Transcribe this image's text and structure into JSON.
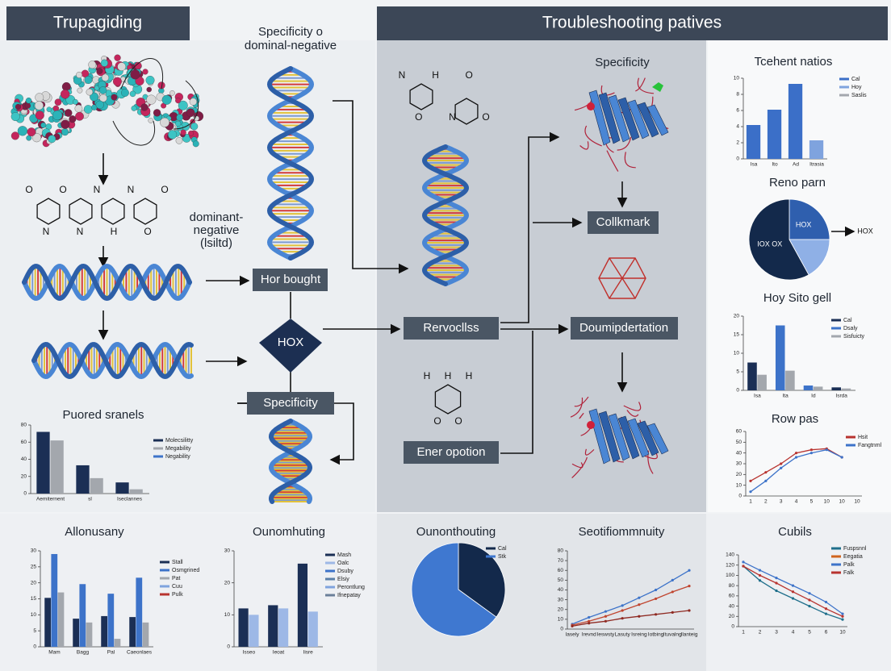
{
  "header": {
    "left_title": "Trupagiding",
    "right_title": "Troubleshooting patives"
  },
  "labels": {
    "specificity_top": [
      "Specificity o",
      "dominal-negative"
    ],
    "dominant_negative": [
      "dominant-",
      "negative",
      "(lsiltd)"
    ],
    "specificity_mid": "Specificity"
  },
  "boxes": {
    "hor_bought": "Hor bought",
    "hox": "HOX",
    "specificity": "Specificity",
    "collkmark": "Collkmark",
    "rervocllss": "Rervocllss",
    "doumipdertation": "Doumipdertation",
    "ener_opotion": "Ener opotion"
  },
  "molecules": [
    [
      "O",
      "N",
      "O",
      "N",
      "N",
      "H",
      "N",
      "O",
      "O"
    ],
    [
      "N",
      "O",
      "H",
      "N",
      "O",
      "O"
    ],
    [
      "H",
      "O",
      "H",
      "O",
      "H"
    ]
  ],
  "chart_data": [
    {
      "type": "bar",
      "title": "Tcehent natios",
      "categories": [
        "Isa",
        "Ito",
        "Ad",
        "Itrasia"
      ],
      "ylim": [
        0,
        10
      ],
      "yticks": [
        0,
        2,
        4,
        6,
        8,
        10
      ],
      "series": [
        {
          "name": "Cal",
          "color": "#3b6fc8",
          "values": [
            4.2,
            6.1,
            9.3,
            null
          ]
        },
        {
          "name": "Hoy",
          "color": "#7fa3de",
          "values": [
            null,
            null,
            null,
            2.3
          ]
        },
        {
          "name": "Saslis",
          "color": "#a3a7ad",
          "values": [
            null,
            null,
            null,
            null
          ]
        }
      ]
    },
    {
      "type": "pie",
      "title": "Reno parn",
      "categories": [
        "HOX",
        null,
        "IOX OX"
      ],
      "values": [
        25,
        17,
        58
      ],
      "colors": [
        "#2f5fae",
        "#8fb0e6",
        "#13294b"
      ],
      "annotation": "HOX"
    },
    {
      "type": "bar",
      "title": "Hoy Sito gell",
      "categories": [
        "Isa",
        "Ita",
        "Id",
        "Isrda"
      ],
      "ylim": [
        0,
        20
      ],
      "yticks": [
        0,
        5,
        10,
        15,
        20
      ],
      "series": [
        {
          "name": "Cal",
          "color": "#1b2f55",
          "values": [
            7.5,
            null,
            null,
            0.8
          ]
        },
        {
          "name": "Dsaly",
          "color": "#3d73c9",
          "values": [
            null,
            17.5,
            1.3,
            null
          ]
        },
        {
          "name": "Sisfuicty",
          "color": "#a3a7ad",
          "values": [
            4.2,
            5.3,
            1,
            0.5
          ]
        }
      ]
    },
    {
      "type": "line",
      "title": "Row pas",
      "categories": [
        "1",
        "2",
        "3",
        "4",
        "5",
        "10",
        "10",
        "10"
      ],
      "ylim": [
        0,
        60
      ],
      "yticks": [
        0,
        10,
        20,
        30,
        40,
        50,
        60
      ],
      "series": [
        {
          "name": "Hsit",
          "color": "#b8332f",
          "values": [
            14,
            22,
            30,
            40,
            43,
            44,
            36,
            null
          ]
        },
        {
          "name": "Fangtnml",
          "color": "#3d73c9",
          "values": [
            4,
            14,
            26,
            36,
            40,
            43,
            36,
            null
          ]
        }
      ]
    },
    {
      "type": "bar",
      "title": "Puored sranels",
      "categories": [
        "Aemiternent",
        "sl",
        "Iseclannes"
      ],
      "ylim": [
        0,
        80
      ],
      "yticks": [
        0,
        20,
        40,
        60,
        80
      ],
      "series": [
        {
          "name": "Molecsilitty",
          "color": "#1b2f55",
          "values": [
            72,
            33,
            13
          ]
        },
        {
          "name": "Megability",
          "color": "#a3a7ad",
          "values": [
            62,
            18,
            5
          ]
        },
        {
          "name": "Negability",
          "color": "#3d73c9",
          "values": [
            null,
            null,
            null
          ]
        }
      ]
    },
    {
      "type": "bar",
      "title": "Allonusany",
      "categories": [
        "Mam",
        "Bagg",
        "Pal",
        "Caeonlaes"
      ],
      "ylim": [
        0,
        30
      ],
      "yticks": [
        0,
        5,
        10,
        15,
        20,
        25,
        30
      ],
      "series": [
        {
          "name": "Stall",
          "color": "#1b2f55",
          "values": [
            15.3,
            8.8,
            9.6,
            9.3
          ]
        },
        {
          "name": "Osmgrined",
          "color": "#3d73c9",
          "values": [
            29,
            19.6,
            16.6,
            21.6
          ]
        },
        {
          "name": "Pat",
          "color": "#a3a7ad",
          "values": [
            17,
            7.6,
            2.5,
            7.6
          ]
        },
        {
          "name": "Cuu",
          "color": "#7fa3de",
          "values": [
            null,
            null,
            null,
            null
          ]
        },
        {
          "name": "Pulk",
          "color": "#b8332f",
          "values": [
            null,
            null,
            null,
            null
          ]
        }
      ]
    },
    {
      "type": "bar",
      "title": "Ounomhuting",
      "categories": [
        "Isseo",
        "Ieoat",
        "Iisre"
      ],
      "ylim": [
        0,
        30
      ],
      "yticks": [
        0,
        10,
        20,
        30
      ],
      "series": [
        {
          "name": "Mash",
          "color": "#1b2f55",
          "values": [
            12,
            13,
            26
          ]
        },
        {
          "name": "Oalc",
          "color": "#9db8e6",
          "values": [
            10,
            12,
            11
          ]
        },
        {
          "name": "Dsuby",
          "color": "#3d73c9",
          "values": [
            null,
            null,
            null
          ]
        },
        {
          "name": "Elsiy",
          "color": "#5a7fa8",
          "values": [
            null,
            null,
            null
          ]
        },
        {
          "name": "Perontlung",
          "color": "#7fa3de",
          "values": [
            null,
            null,
            null
          ]
        },
        {
          "name": "Ifnepatay",
          "color": "#6b7f99",
          "values": [
            null,
            null,
            null
          ]
        }
      ]
    },
    {
      "type": "pie",
      "title": "Ounonthouting",
      "categories": [
        "Cal",
        "Stk"
      ],
      "values": [
        35,
        65
      ],
      "colors": [
        "#13294b",
        "#3f78d0"
      ],
      "legend": true
    },
    {
      "type": "line",
      "title": "Seotifiommnuity",
      "categories": [
        "Iasely",
        "Irevnd",
        "Ieswsty",
        "Lasuty",
        "Isreing",
        "Iotbing",
        "Ituvalng",
        "Ilanteig"
      ],
      "ylim": [
        0,
        80
      ],
      "yticks": [
        0,
        10,
        20,
        30,
        40,
        50,
        60,
        70,
        80
      ],
      "series": [
        {
          "color": "#3d73c9",
          "values": [
            5,
            12,
            18,
            24,
            32,
            40,
            50,
            60
          ]
        },
        {
          "color": "#c0452f",
          "values": [
            4,
            8,
            13,
            19,
            25,
            31,
            38,
            44
          ]
        },
        {
          "color": "#8f2a22",
          "values": [
            3,
            6,
            8,
            11,
            13,
            15,
            17,
            19
          ]
        }
      ]
    },
    {
      "type": "line",
      "title": "Cubils",
      "categories": [
        "1",
        "2",
        "3",
        "4",
        "5",
        "6",
        "10"
      ],
      "ylim": [
        0,
        140
      ],
      "yticks": [
        0,
        20,
        40,
        60,
        80,
        100,
        120,
        140
      ],
      "series": [
        {
          "name": "Fuspsnnl",
          "color": "#1f6f8b",
          "values": [
            118,
            90,
            70,
            55,
            40,
            25,
            14
          ]
        },
        {
          "name": "Eegatia",
          "color": "#d0641e",
          "values": [
            null,
            null,
            null,
            null,
            null,
            null,
            null
          ]
        },
        {
          "name": "Palk",
          "color": "#3d73c9",
          "values": [
            126,
            110,
            95,
            80,
            65,
            48,
            25
          ]
        },
        {
          "name": "Falk",
          "color": "#b8332f",
          "values": [
            118,
            100,
            85,
            68,
            52,
            35,
            20
          ]
        }
      ]
    }
  ]
}
